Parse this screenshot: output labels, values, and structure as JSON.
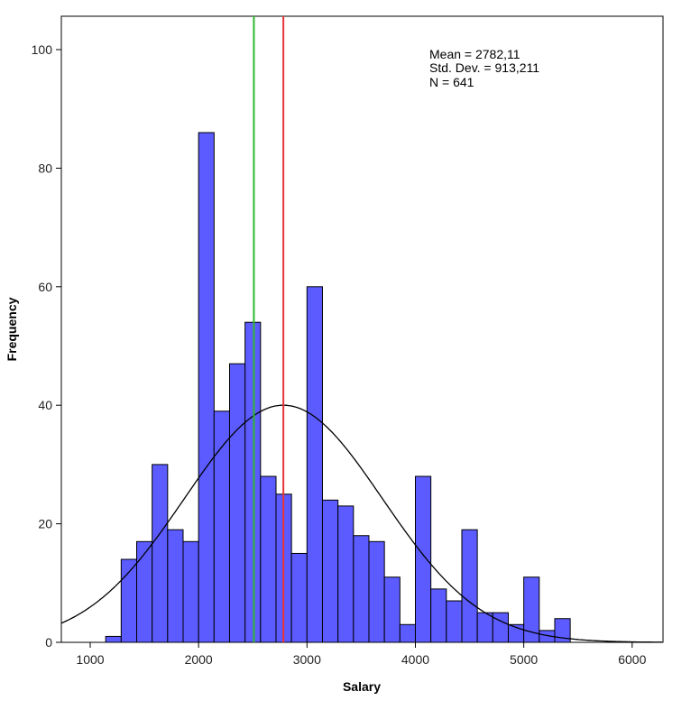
{
  "chart_data": {
    "type": "bar",
    "title": "",
    "xlabel": "Salary",
    "ylabel": "Frequency",
    "xlim": [
      715,
      6285
    ],
    "ylim": [
      0,
      105
    ],
    "x_ticks": [
      1000,
      2000,
      3000,
      4000,
      5000,
      6000
    ],
    "y_ticks": [
      0,
      20,
      40,
      60,
      80,
      100
    ],
    "bin_start": 1142.857,
    "bin_width": 142.857,
    "values": [
      1,
      14,
      17,
      30,
      19,
      17,
      86,
      39,
      47,
      54,
      28,
      25,
      15,
      60,
      24,
      23,
      18,
      17,
      11,
      3,
      28,
      9,
      7,
      19,
      5,
      5,
      3,
      11,
      2,
      4
    ],
    "bar_color": "#5b5bff",
    "normal_curve": {
      "mean": 2782.11,
      "sd": 913.211,
      "n": 641,
      "color": "#000000"
    },
    "reference_lines": [
      {
        "name": "median",
        "x": 2510,
        "color": "#2db82d"
      },
      {
        "name": "mean",
        "x": 2782.11,
        "color": "#e8333a"
      }
    ],
    "annotations": [
      "Mean = 2782,11",
      "Std. Dev. = 913,211",
      "N = 641"
    ],
    "grid": false
  }
}
